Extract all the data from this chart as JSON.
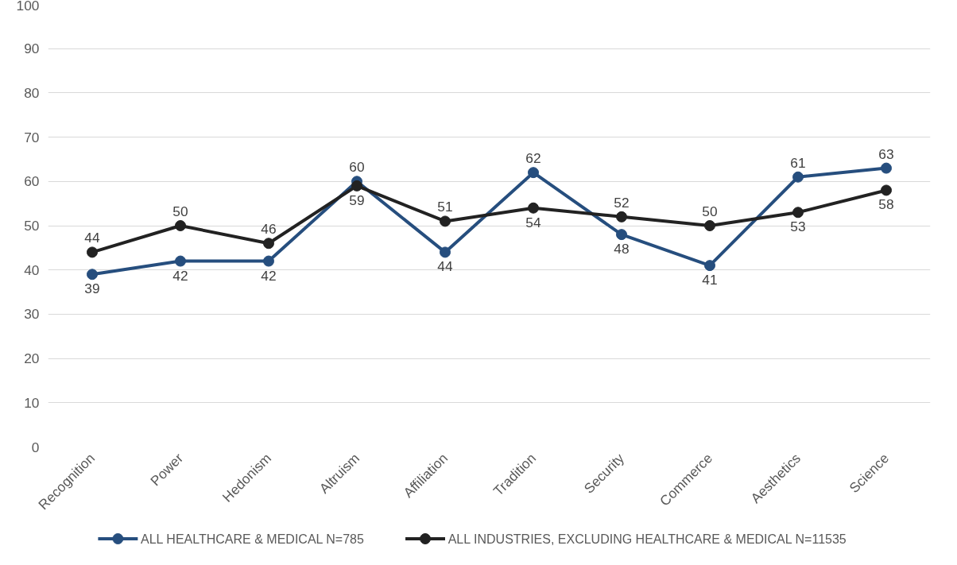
{
  "chart_data": {
    "type": "line",
    "categories": [
      "Recognition",
      "Power",
      "Hedonism",
      "Altruism",
      "Affiliation",
      "Tradition",
      "Security",
      "Commerce",
      "Aesthetics",
      "Science"
    ],
    "series": [
      {
        "name": "ALL HEALTHCARE & MEDICAL N=785",
        "color": "#264e7e",
        "values": [
          39,
          42,
          42,
          60,
          44,
          62,
          48,
          41,
          61,
          63
        ]
      },
      {
        "name": "ALL INDUSTRIES, EXCLUDING HEALTHCARE & MEDICAL N=11535",
        "color": "#222222",
        "values": [
          44,
          50,
          46,
          59,
          51,
          54,
          52,
          50,
          53,
          58
        ]
      }
    ],
    "ylim": [
      0,
      100
    ],
    "yticks": [
      0,
      10,
      20,
      30,
      40,
      50,
      60,
      70,
      80,
      90,
      100
    ],
    "grid": "y",
    "legend": "bottom",
    "marker": "circle",
    "line_style": "solid",
    "data_labels": true
  }
}
